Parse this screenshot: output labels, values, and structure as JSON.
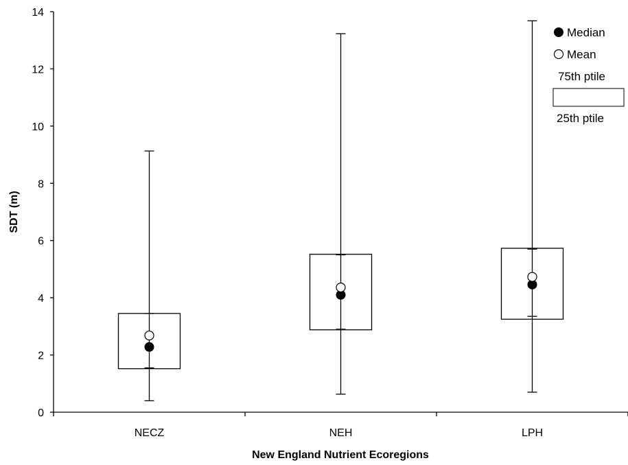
{
  "chart_data": {
    "type": "box",
    "xlabel": "New England Nutrient Ecoregions",
    "ylabel": "SDT (m)",
    "ylim": [
      0,
      14
    ],
    "yticks": [
      "0",
      "2",
      "4",
      "6",
      "8",
      "10",
      "12",
      "14"
    ],
    "grid": false,
    "legend_placement": "top-right",
    "categories": [
      "NECZ",
      "NEH",
      "LPH"
    ],
    "boxes": [
      {
        "category": "NECZ",
        "min": 0.4,
        "q1": 1.52,
        "median": 2.28,
        "mean": 2.68,
        "q3": 3.45,
        "max": 9.13,
        "p10": 1.55,
        "p90": 3.45
      },
      {
        "category": "NEH",
        "min": 0.63,
        "q1": 2.88,
        "median": 4.1,
        "mean": 4.36,
        "q3": 5.52,
        "max": 13.23,
        "p10": 2.9,
        "p90": 5.5
      },
      {
        "category": "LPH",
        "min": 0.7,
        "q1": 3.25,
        "median": 4.46,
        "mean": 4.73,
        "q3": 5.73,
        "max": 13.68,
        "p10": 3.35,
        "p90": 5.7
      }
    ],
    "legend": {
      "median": "Median",
      "mean": "Mean",
      "upper": "75th ptile",
      "lower": "25th ptile"
    }
  }
}
